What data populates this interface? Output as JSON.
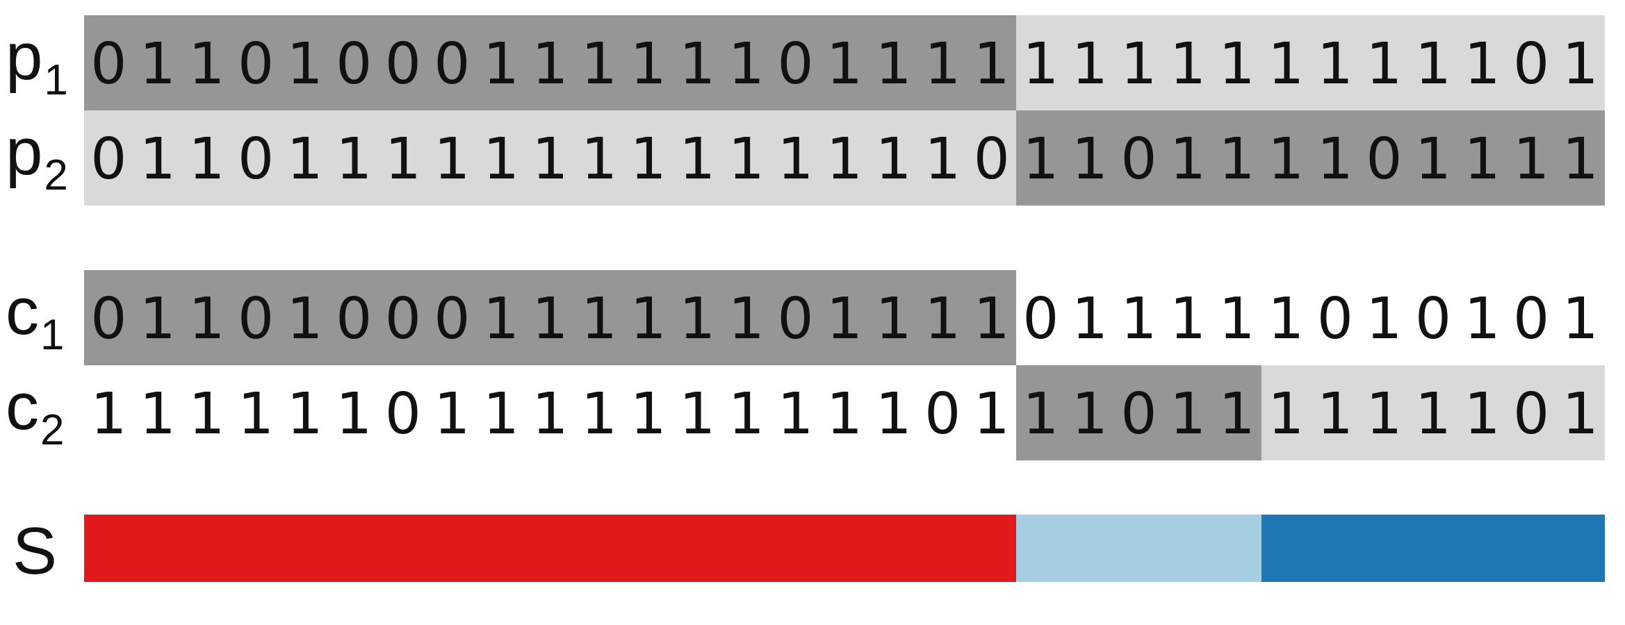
{
  "colors": {
    "dark_segment": "#969696",
    "light_segment": "#d9d9d9",
    "segment_red": "#e31a1c",
    "segment_light_blue": "#a6cee3",
    "segment_blue": "#1f78b4"
  },
  "rows": [
    {
      "label_main": "p",
      "label_sub": "1",
      "bits": [
        "0",
        "1",
        "1",
        "0",
        "1",
        "0",
        "0",
        "0",
        "1",
        "1",
        "1",
        "1",
        "1",
        "1",
        "0",
        "1",
        "1",
        "1",
        "1",
        "1",
        "1",
        "1",
        "1",
        "1",
        "1",
        "1",
        "1",
        "1",
        "1",
        "0",
        "1"
      ],
      "segments": [
        {
          "start": 0,
          "end": 19,
          "shade": "dark"
        },
        {
          "start": 19,
          "end": 31,
          "shade": "light"
        }
      ]
    },
    {
      "label_main": "p",
      "label_sub": "2",
      "bits": [
        "0",
        "1",
        "1",
        "0",
        "1",
        "1",
        "1",
        "1",
        "1",
        "1",
        "1",
        "1",
        "1",
        "1",
        "1",
        "1",
        "1",
        "1",
        "0",
        "1",
        "1",
        "0",
        "1",
        "1",
        "1",
        "1",
        "0",
        "1",
        "1",
        "1",
        "1"
      ],
      "segments": [
        {
          "start": 0,
          "end": 19,
          "shade": "light"
        },
        {
          "start": 19,
          "end": 31,
          "shade": "dark"
        }
      ]
    },
    {
      "label_main": "c",
      "label_sub": "1",
      "bits": [
        "0",
        "1",
        "1",
        "0",
        "1",
        "0",
        "0",
        "0",
        "1",
        "1",
        "1",
        "1",
        "1",
        "1",
        "0",
        "1",
        "1",
        "1",
        "1",
        "0",
        "1",
        "1",
        "1",
        "1",
        "1",
        "0",
        "1",
        "0",
        "1",
        "0",
        "1"
      ],
      "segments": [
        {
          "start": 0,
          "end": 19,
          "shade": "dark"
        }
      ]
    },
    {
      "label_main": "c",
      "label_sub": "2",
      "bits": [
        "1",
        "1",
        "1",
        "1",
        "1",
        "1",
        "0",
        "1",
        "1",
        "1",
        "1",
        "1",
        "1",
        "1",
        "1",
        "1",
        "1",
        "0",
        "1",
        "1",
        "1",
        "0",
        "1",
        "1",
        "1",
        "1",
        "1",
        "1",
        "1",
        "0",
        "1"
      ],
      "segments": [
        {
          "start": 19,
          "end": 24,
          "shade": "dark"
        },
        {
          "start": 24,
          "end": 31,
          "shade": "light"
        }
      ]
    }
  ],
  "S": {
    "label": "S",
    "segments": [
      {
        "start": 0,
        "end": 19,
        "color": "#e31a1c"
      },
      {
        "start": 19,
        "end": 24,
        "color": "#a6cee3"
      },
      {
        "start": 24,
        "end": 31,
        "color": "#1f78b4"
      }
    ]
  }
}
